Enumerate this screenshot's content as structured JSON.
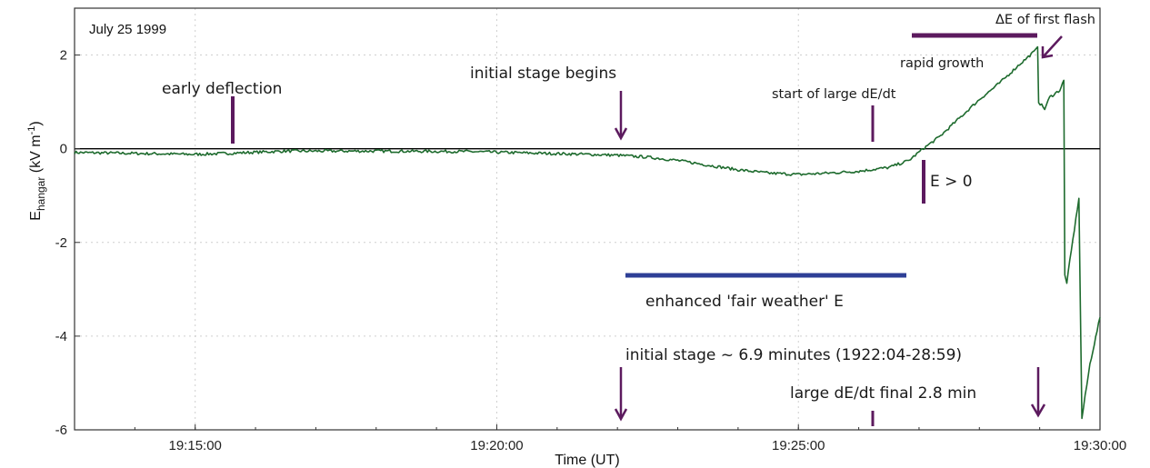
{
  "chart_data": {
    "type": "line",
    "date": "July 25 1999",
    "xlabel": "Time (UT)",
    "ylabel": {
      "base": "E",
      "sub": "hangar",
      "unit_open": " (kV m",
      "unit_sup": "-1",
      "unit_close": ")"
    },
    "xlim": [
      "19:13:00",
      "19:30:00"
    ],
    "ylim": [
      -6,
      3
    ],
    "x_ticks": [
      "19:15:00",
      "19:20:00",
      "19:25:00",
      "19:30:00"
    ],
    "y_ticks": [
      "-6",
      "-4",
      "-2",
      "0",
      "2"
    ],
    "y_tick_values": [
      -6,
      -4,
      -2,
      0,
      2
    ],
    "grid": true,
    "zero_line": true,
    "series": [
      {
        "color": "#1e6b2e",
        "points": [
          [
            "19:13:00",
            -0.08
          ],
          [
            "19:15:00",
            -0.12
          ],
          [
            "19:15:30",
            -0.1
          ],
          [
            "19:16:30",
            -0.05
          ],
          [
            "19:18:00",
            -0.05
          ],
          [
            "19:19:30",
            -0.06
          ],
          [
            "19:20:30",
            -0.09
          ],
          [
            "19:21:30",
            -0.12
          ],
          [
            "19:22:00",
            -0.14
          ],
          [
            "19:22:30",
            -0.18
          ],
          [
            "19:23:00",
            -0.25
          ],
          [
            "19:23:30",
            -0.35
          ],
          [
            "19:24:00",
            -0.45
          ],
          [
            "19:24:30",
            -0.52
          ],
          [
            "19:25:00",
            -0.55
          ],
          [
            "19:25:30",
            -0.52
          ],
          [
            "19:26:00",
            -0.48
          ],
          [
            "19:26:30",
            -0.4
          ],
          [
            "19:26:50",
            -0.25
          ],
          [
            "19:27:04",
            0.0
          ],
          [
            "19:27:20",
            0.25
          ],
          [
            "19:27:40",
            0.65
          ],
          [
            "19:28:00",
            1.05
          ],
          [
            "19:28:20",
            1.4
          ],
          [
            "19:28:40",
            1.8
          ],
          [
            "19:28:56",
            2.1
          ],
          [
            "19:28:58",
            2.2
          ],
          [
            "19:28:59",
            1.0
          ],
          [
            "19:29:05",
            0.85
          ],
          [
            "19:29:10",
            1.1
          ],
          [
            "19:29:20",
            1.25
          ],
          [
            "19:29:24",
            1.45
          ],
          [
            "19:29:25",
            -2.7
          ],
          [
            "19:29:27",
            -2.85
          ],
          [
            "19:29:36",
            -1.5
          ],
          [
            "19:29:39",
            -1.05
          ],
          [
            "19:29:42",
            -5.75
          ],
          [
            "19:29:50",
            -4.6
          ],
          [
            "19:30:00",
            -3.6
          ]
        ]
      }
    ],
    "annotations": {
      "early_deflection": "early deflection",
      "initial_stage_begins": "initial stage begins",
      "start_large_dedt": "start of large dE/dt",
      "rapid_growth": "rapid growth",
      "delta_e_first_flash": "ΔE of first flash",
      "e_positive": "E > 0",
      "enhanced_fair_weather": "enhanced 'fair weather' E",
      "initial_stage_duration": "initial stage ~ 6.9 minutes (1922:04-28:59)",
      "large_dedt_final": "large dE/dt  final 2.8 min"
    },
    "colors": {
      "purple": "#5c1a5e",
      "blue": "#2e3f96",
      "trace": "#1e6b2e",
      "axis": "#333333",
      "grid": "#cfcfcf"
    }
  }
}
